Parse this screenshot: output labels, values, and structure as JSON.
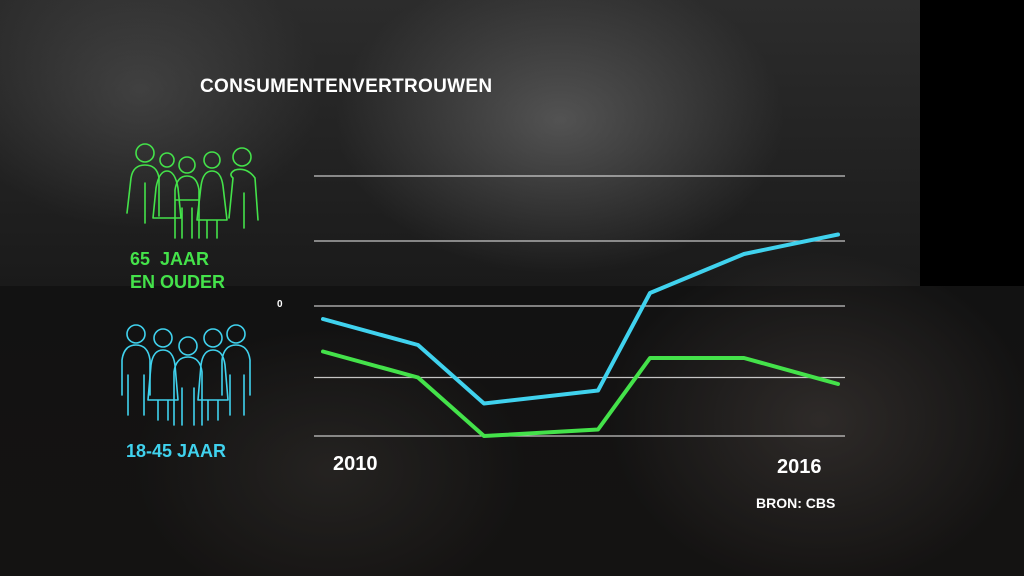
{
  "chart_data": {
    "type": "line",
    "title": "CONSUMENTENVERTROUWEN",
    "x": [
      2010,
      2011,
      2012,
      2013,
      2014,
      2015,
      2016
    ],
    "x_tick_labels": [
      "2010",
      "2016"
    ],
    "y_tick_labels": [
      "0"
    ],
    "ylim": [
      -20,
      20
    ],
    "grid": true,
    "legend": "left",
    "series": [
      {
        "name": "65 JAAR EN OUDER",
        "color": "#44e24a",
        "values": [
          -7,
          -11,
          -20,
          -19,
          -8,
          -8,
          -12
        ]
      },
      {
        "name": "18-45 JAAR",
        "color": "#40d2ee",
        "values": [
          -2,
          -6,
          -15,
          -13,
          2,
          8,
          11
        ]
      }
    ],
    "source": "BRON: CBS"
  },
  "legend_items": [
    {
      "label_line1": "65  JAAR",
      "label_line2": "EN OUDER",
      "icon": "elderly-group-icon",
      "color": "#44e24a"
    },
    {
      "label": "18-45 JAAR",
      "icon": "adult-group-icon",
      "color": "#40d2ee"
    }
  ]
}
